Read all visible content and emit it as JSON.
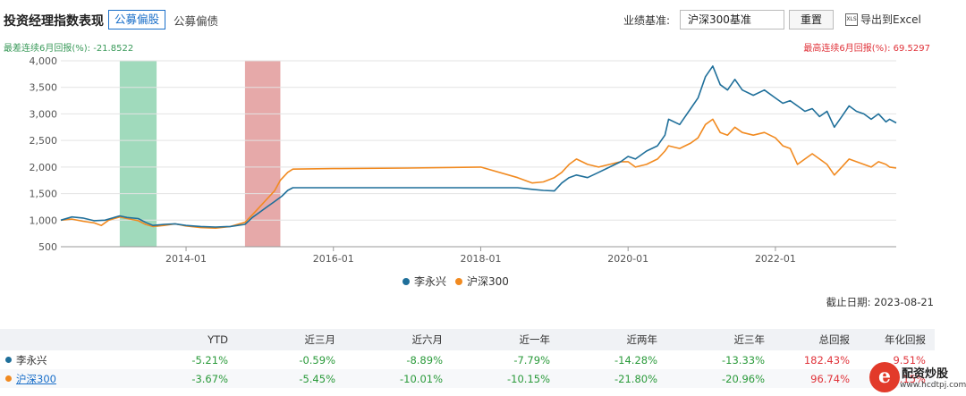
{
  "header": {
    "title": "投资经理指数表现",
    "tab_active": "公募偏股",
    "tab_other": "公募偏债",
    "benchmark_label": "业绩基准:",
    "benchmark_value": "沪深300基准",
    "reset_label": "重置",
    "export_icon_text": "XLS",
    "export_label": "导出到Excel"
  },
  "drawdown": {
    "min_text": "最差连续6月回报(%): -21.8522",
    "max_text": "最高连续6月回报(%): 69.5297",
    "min_color": "#3a9a5a",
    "max_color": "#e0333a"
  },
  "chart_data": {
    "type": "line",
    "title": "",
    "xlabel": "",
    "ylabel": "",
    "ylim": [
      500,
      4000
    ],
    "yticks": [
      500,
      1000,
      1500,
      2000,
      2500,
      3000,
      3500,
      4000
    ],
    "ytick_labels": [
      "500",
      "1,000",
      "1,500",
      "2,000",
      "2,500",
      "3,000",
      "3,500",
      "4,000"
    ],
    "xlim": [
      2012.3,
      2023.64
    ],
    "xticks": [
      2014.0,
      2016.0,
      2018.0,
      2020.0,
      2022.0
    ],
    "xtick_labels": [
      "2014-01",
      "2016-01",
      "2018-01",
      "2020-01",
      "2022-01"
    ],
    "grid": "horizontal",
    "legend": "bottom-center",
    "highlight_bands": [
      {
        "start": 2013.1,
        "end": 2013.6,
        "color": "#8fd3b0"
      },
      {
        "start": 2014.8,
        "end": 2015.28,
        "color": "#e29a9a"
      }
    ],
    "series": [
      {
        "name": "李永兴",
        "color": "#1f6f9a",
        "points": [
          [
            2012.3,
            1000
          ],
          [
            2012.45,
            1060
          ],
          [
            2012.6,
            1040
          ],
          [
            2012.75,
            990
          ],
          [
            2012.9,
            1000
          ],
          [
            2013.0,
            1040
          ],
          [
            2013.1,
            1080
          ],
          [
            2013.2,
            1050
          ],
          [
            2013.35,
            1030
          ],
          [
            2013.45,
            960
          ],
          [
            2013.55,
            900
          ],
          [
            2013.7,
            920
          ],
          [
            2013.85,
            930
          ],
          [
            2014.0,
            900
          ],
          [
            2014.2,
            880
          ],
          [
            2014.4,
            870
          ],
          [
            2014.6,
            880
          ],
          [
            2014.8,
            920
          ],
          [
            2014.9,
            1050
          ],
          [
            2015.0,
            1150
          ],
          [
            2015.1,
            1250
          ],
          [
            2015.2,
            1350
          ],
          [
            2015.3,
            1450
          ],
          [
            2015.38,
            1560
          ],
          [
            2015.45,
            1610
          ],
          [
            2016.0,
            1610
          ],
          [
            2017.0,
            1610
          ],
          [
            2018.0,
            1610
          ],
          [
            2018.5,
            1610
          ],
          [
            2018.7,
            1580
          ],
          [
            2018.85,
            1560
          ],
          [
            2019.0,
            1550
          ],
          [
            2019.1,
            1700
          ],
          [
            2019.2,
            1800
          ],
          [
            2019.3,
            1850
          ],
          [
            2019.45,
            1800
          ],
          [
            2019.6,
            1900
          ],
          [
            2019.75,
            2000
          ],
          [
            2019.9,
            2100
          ],
          [
            2020.0,
            2200
          ],
          [
            2020.1,
            2150
          ],
          [
            2020.25,
            2300
          ],
          [
            2020.4,
            2400
          ],
          [
            2020.5,
            2600
          ],
          [
            2020.55,
            2900
          ],
          [
            2020.7,
            2800
          ],
          [
            2020.85,
            3100
          ],
          [
            2020.95,
            3300
          ],
          [
            2021.05,
            3700
          ],
          [
            2021.15,
            3900
          ],
          [
            2021.25,
            3550
          ],
          [
            2021.35,
            3450
          ],
          [
            2021.45,
            3650
          ],
          [
            2021.55,
            3450
          ],
          [
            2021.7,
            3350
          ],
          [
            2021.85,
            3450
          ],
          [
            2022.0,
            3300
          ],
          [
            2022.1,
            3200
          ],
          [
            2022.2,
            3250
          ],
          [
            2022.3,
            3150
          ],
          [
            2022.4,
            3050
          ],
          [
            2022.5,
            3100
          ],
          [
            2022.6,
            2950
          ],
          [
            2022.7,
            3050
          ],
          [
            2022.8,
            2750
          ],
          [
            2022.9,
            2950
          ],
          [
            2023.0,
            3150
          ],
          [
            2023.1,
            3050
          ],
          [
            2023.2,
            3000
          ],
          [
            2023.3,
            2900
          ],
          [
            2023.4,
            3000
          ],
          [
            2023.5,
            2850
          ],
          [
            2023.55,
            2900
          ],
          [
            2023.64,
            2830
          ]
        ]
      },
      {
        "name": "沪深300",
        "color": "#f18a20",
        "points": [
          [
            2012.3,
            1000
          ],
          [
            2012.45,
            1020
          ],
          [
            2012.6,
            980
          ],
          [
            2012.75,
            950
          ],
          [
            2012.85,
            900
          ],
          [
            2012.95,
            1000
          ],
          [
            2013.1,
            1060
          ],
          [
            2013.2,
            1030
          ],
          [
            2013.35,
            990
          ],
          [
            2013.45,
            920
          ],
          [
            2013.55,
            880
          ],
          [
            2013.7,
            900
          ],
          [
            2013.85,
            930
          ],
          [
            2014.0,
            890
          ],
          [
            2014.2,
            860
          ],
          [
            2014.4,
            850
          ],
          [
            2014.6,
            880
          ],
          [
            2014.8,
            960
          ],
          [
            2014.9,
            1100
          ],
          [
            2015.0,
            1250
          ],
          [
            2015.1,
            1400
          ],
          [
            2015.2,
            1550
          ],
          [
            2015.28,
            1750
          ],
          [
            2015.38,
            1900
          ],
          [
            2015.45,
            1960
          ],
          [
            2016.0,
            1970
          ],
          [
            2017.0,
            1980
          ],
          [
            2018.0,
            2000
          ],
          [
            2018.5,
            1800
          ],
          [
            2018.7,
            1700
          ],
          [
            2018.85,
            1720
          ],
          [
            2019.0,
            1800
          ],
          [
            2019.1,
            1900
          ],
          [
            2019.2,
            2050
          ],
          [
            2019.3,
            2150
          ],
          [
            2019.45,
            2050
          ],
          [
            2019.6,
            2000
          ],
          [
            2019.75,
            2050
          ],
          [
            2019.9,
            2100
          ],
          [
            2020.0,
            2100
          ],
          [
            2020.1,
            2000
          ],
          [
            2020.25,
            2050
          ],
          [
            2020.4,
            2150
          ],
          [
            2020.5,
            2300
          ],
          [
            2020.55,
            2400
          ],
          [
            2020.7,
            2350
          ],
          [
            2020.85,
            2450
          ],
          [
            2020.95,
            2550
          ],
          [
            2021.05,
            2800
          ],
          [
            2021.15,
            2900
          ],
          [
            2021.25,
            2650
          ],
          [
            2021.35,
            2600
          ],
          [
            2021.45,
            2750
          ],
          [
            2021.55,
            2650
          ],
          [
            2021.7,
            2600
          ],
          [
            2021.85,
            2650
          ],
          [
            2022.0,
            2550
          ],
          [
            2022.1,
            2400
          ],
          [
            2022.2,
            2350
          ],
          [
            2022.3,
            2050
          ],
          [
            2022.4,
            2150
          ],
          [
            2022.5,
            2250
          ],
          [
            2022.6,
            2150
          ],
          [
            2022.7,
            2050
          ],
          [
            2022.8,
            1850
          ],
          [
            2022.9,
            2000
          ],
          [
            2023.0,
            2150
          ],
          [
            2023.1,
            2100
          ],
          [
            2023.2,
            2050
          ],
          [
            2023.3,
            2000
          ],
          [
            2023.4,
            2100
          ],
          [
            2023.5,
            2050
          ],
          [
            2023.55,
            2000
          ],
          [
            2023.64,
            1980
          ]
        ]
      }
    ]
  },
  "deadline": "截止日期: 2023-08-21",
  "table": {
    "headers": [
      "",
      "YTD",
      "近三月",
      "近六月",
      "近一年",
      "近两年",
      "近三年",
      "总回报",
      "年化回报"
    ],
    "rows": [
      {
        "name": "李永兴",
        "color": "#1f6f9a",
        "values": [
          "-5.21%",
          "-0.59%",
          "-8.89%",
          "-7.79%",
          "-14.28%",
          "-13.33%",
          "182.43%",
          "9.51%"
        ]
      },
      {
        "name": "沪深300",
        "color": "#f18a20",
        "values": [
          "-3.67%",
          "-5.45%",
          "-10.01%",
          "-10.15%",
          "-21.80%",
          "-20.96%",
          "96.74%",
          "7.15%"
        ]
      }
    ]
  },
  "watermark": {
    "logo_letter": "e",
    "name": "配资炒股",
    "url": "www.hcdtpj.com"
  }
}
